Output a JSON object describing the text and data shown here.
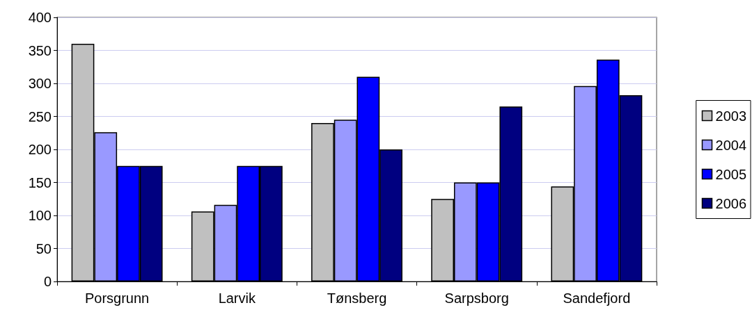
{
  "chart_data": {
    "type": "bar",
    "categories": [
      "Porsgrunn",
      "Larvik",
      "Tønsberg",
      "Sarpsborg",
      "Sandefjord"
    ],
    "series": [
      {
        "name": "2003",
        "color": "#c0c0c0",
        "values": [
          360,
          106,
          240,
          125,
          144
        ]
      },
      {
        "name": "2004",
        "color": "#9999ff",
        "values": [
          226,
          116,
          245,
          150,
          296
        ]
      },
      {
        "name": "2005",
        "color": "#0000ff",
        "values": [
          175,
          175,
          310,
          150,
          336
        ]
      },
      {
        "name": "2006",
        "color": "#000080",
        "values": [
          175,
          175,
          200,
          265,
          282
        ]
      }
    ],
    "ylim": [
      0,
      400
    ],
    "yticks": [
      0,
      50,
      100,
      150,
      200,
      250,
      300,
      350,
      400
    ],
    "grid": "y",
    "legend": "right"
  }
}
